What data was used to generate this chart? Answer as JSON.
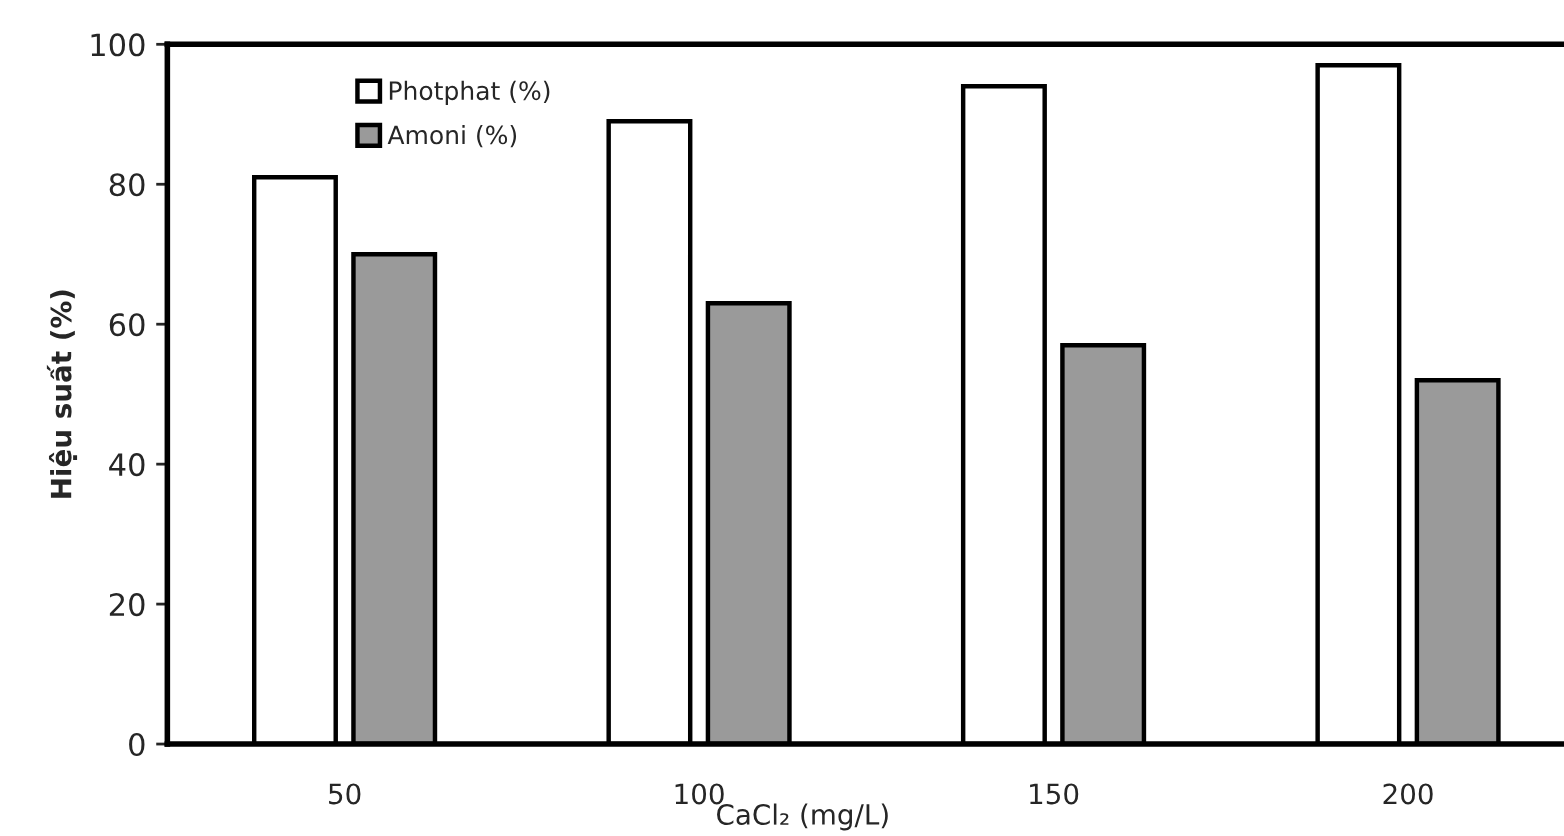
{
  "chart_data": {
    "type": "bar",
    "xlabel": "CaCl₂ (mg/L)",
    "ylabel": "Hiệu suất (%)",
    "categories": [
      "50",
      "100",
      "150",
      "200"
    ],
    "series": [
      {
        "name": "Photphat (%)",
        "color": "#ffffff",
        "values": [
          81,
          89,
          94,
          97
        ]
      },
      {
        "name": "Amoni (%)",
        "color": "#9a9a9a",
        "values": [
          70,
          63,
          57,
          52
        ]
      }
    ],
    "ylim": [
      0,
      100
    ],
    "yticks": [
      0,
      20,
      40,
      60,
      80,
      100
    ],
    "grid": false,
    "legend": "top left"
  }
}
